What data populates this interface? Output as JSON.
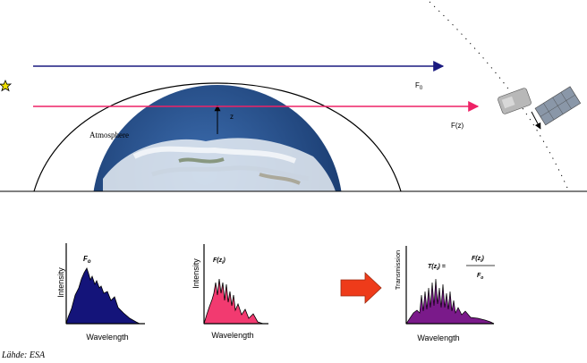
{
  "scene": {
    "f0_label": "F",
    "f0_subscript": "0",
    "fz_label": "F(z)",
    "z_label": "z",
    "atmosphere_label": "Atmosphere",
    "colors": {
      "f0_beam": "#1a1a80",
      "fz_beam": "#ee2266",
      "atmosphere": "#000000",
      "sun": "#f0e000",
      "ocean": "#1f4d8a",
      "cloud": "#f2f4f8"
    }
  },
  "plots": {
    "p1": {
      "ylabel": "Intensity",
      "xlabel": "Wavelength",
      "title": "F",
      "title_sub": "o",
      "fill": "#14147a"
    },
    "p2": {
      "ylabel": "Intensity",
      "xlabel": "Wavelength",
      "title": "F(z",
      "title_sub": "i",
      "title_end": ")",
      "fill": "#f23a70"
    },
    "p3": {
      "ylabel": "Transmission",
      "xlabel": "Wavelength",
      "eq_left": "T(z",
      "eq_left_sub": "i",
      "eq_left_end": ") =",
      "eq_num": "F(z",
      "eq_num_sub": "i",
      "eq_num_end": ")",
      "eq_den": "F",
      "eq_den_sub": "o",
      "fill": "#7a1a8a"
    }
  },
  "arrow_color": "#ee3b1a",
  "source": "Lähde: ESA"
}
